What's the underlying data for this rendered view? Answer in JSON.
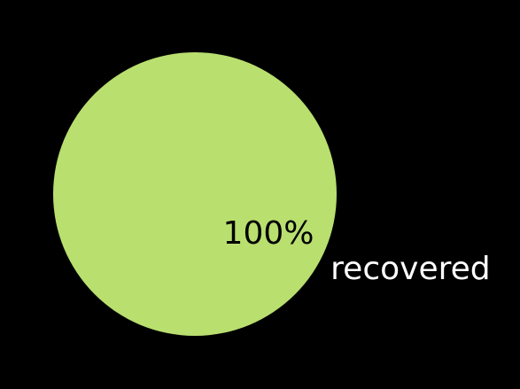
{
  "chart_data": {
    "type": "pie",
    "categories": [
      "recovered"
    ],
    "values": [
      100
    ],
    "data_labels": [
      "100%"
    ],
    "colors": [
      "#b9df6f"
    ],
    "background": "#000000",
    "legend": "none"
  }
}
